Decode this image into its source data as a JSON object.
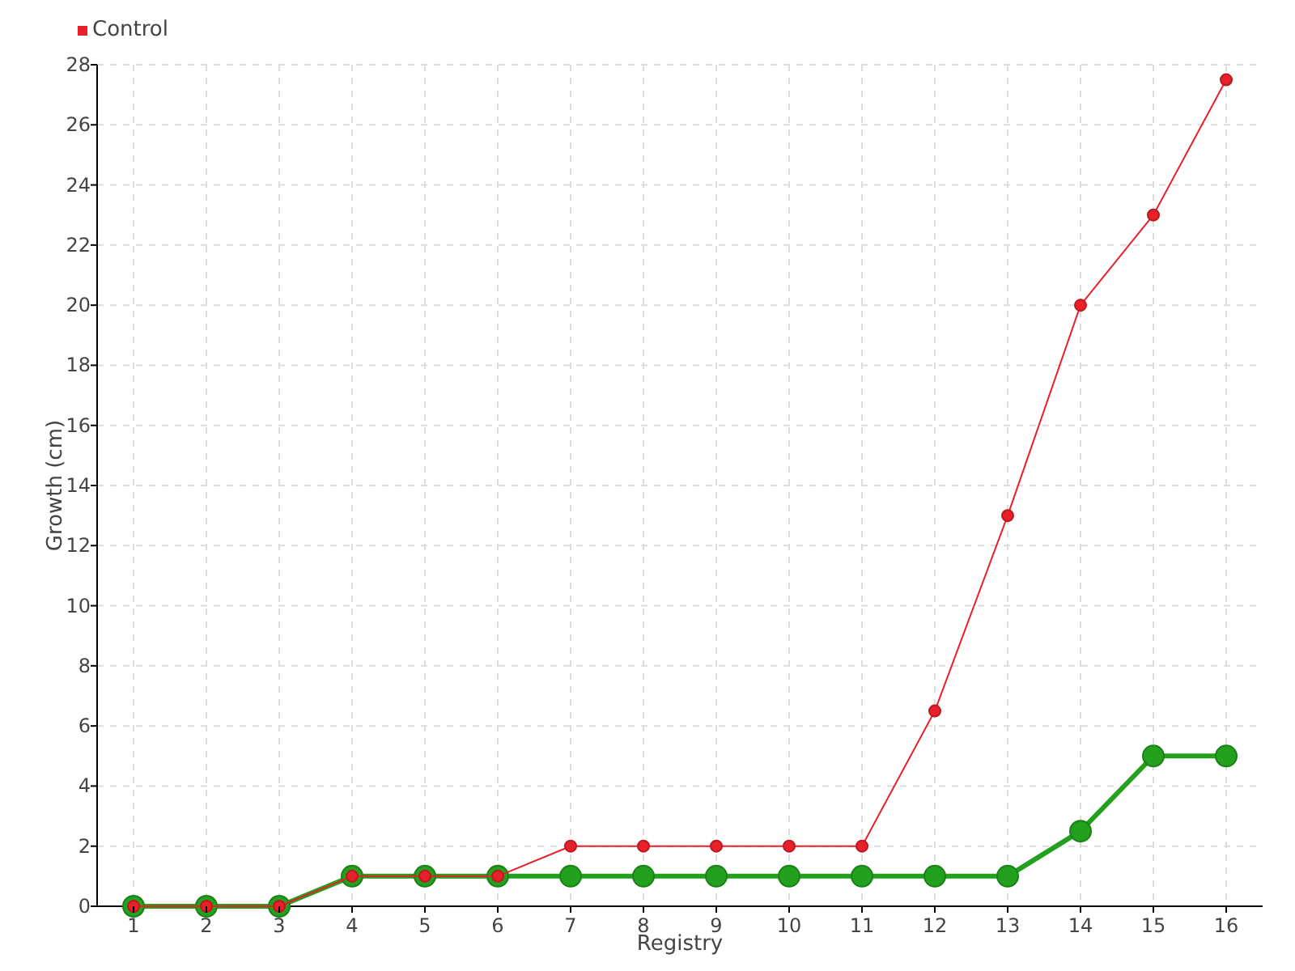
{
  "chart_data": {
    "type": "line",
    "xlabel": "Registry",
    "ylabel": "Growth (cm)",
    "categories": [
      "1",
      "2",
      "3",
      "4",
      "5",
      "6",
      "7",
      "8",
      "9",
      "10",
      "11",
      "12",
      "13",
      "14",
      "15",
      "16"
    ],
    "series": [
      {
        "color": "#22a01e",
        "values": [
          0,
          0,
          0,
          1,
          1,
          1,
          1,
          1,
          1,
          1,
          1,
          1,
          1,
          2.5,
          5,
          5
        ]
      },
      {
        "name": "Control",
        "color": "#e8202a",
        "values": [
          0,
          0,
          0,
          1,
          1,
          1,
          2,
          2,
          2,
          2,
          2,
          6.5,
          13,
          20,
          23,
          27.5
        ]
      }
    ],
    "ylim": [
      0,
      28
    ],
    "yticks": [
      0,
      2,
      4,
      6,
      8,
      10,
      12,
      14,
      16,
      18,
      20,
      22,
      24,
      26,
      28
    ],
    "grid": true,
    "legend": "top left",
    "marker": "circle",
    "line_style": "solid"
  }
}
